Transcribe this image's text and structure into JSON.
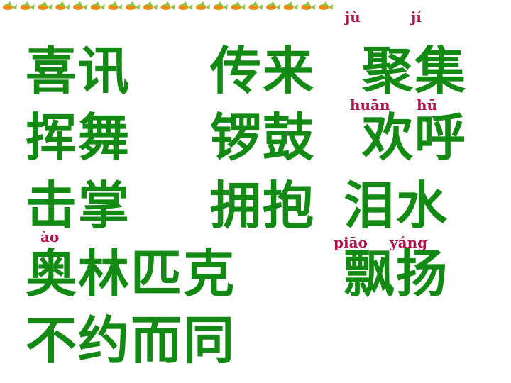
{
  "border": {
    "color_primary": "#f08a12",
    "color_secondary": "#8bc63f",
    "repeat_count": 19
  },
  "colors": {
    "word": "#138a13",
    "pinyin": "#b0124a"
  },
  "rows": [
    {
      "words": [
        "喜讯",
        "传来",
        "聚集"
      ]
    },
    {
      "words": [
        "挥舞",
        "锣鼓",
        "欢呼"
      ]
    },
    {
      "words": [
        "击掌",
        "拥抱",
        "泪水"
      ]
    },
    {
      "words": [
        "奥林匹克",
        "飘扬"
      ]
    },
    {
      "words": [
        "不约而同"
      ]
    }
  ],
  "pinyin": {
    "ju": "jù",
    "ji": "jí",
    "huan": "huān",
    "hu": "hū",
    "ao": "ào",
    "piao": "piāo",
    "yang": "yáng"
  }
}
